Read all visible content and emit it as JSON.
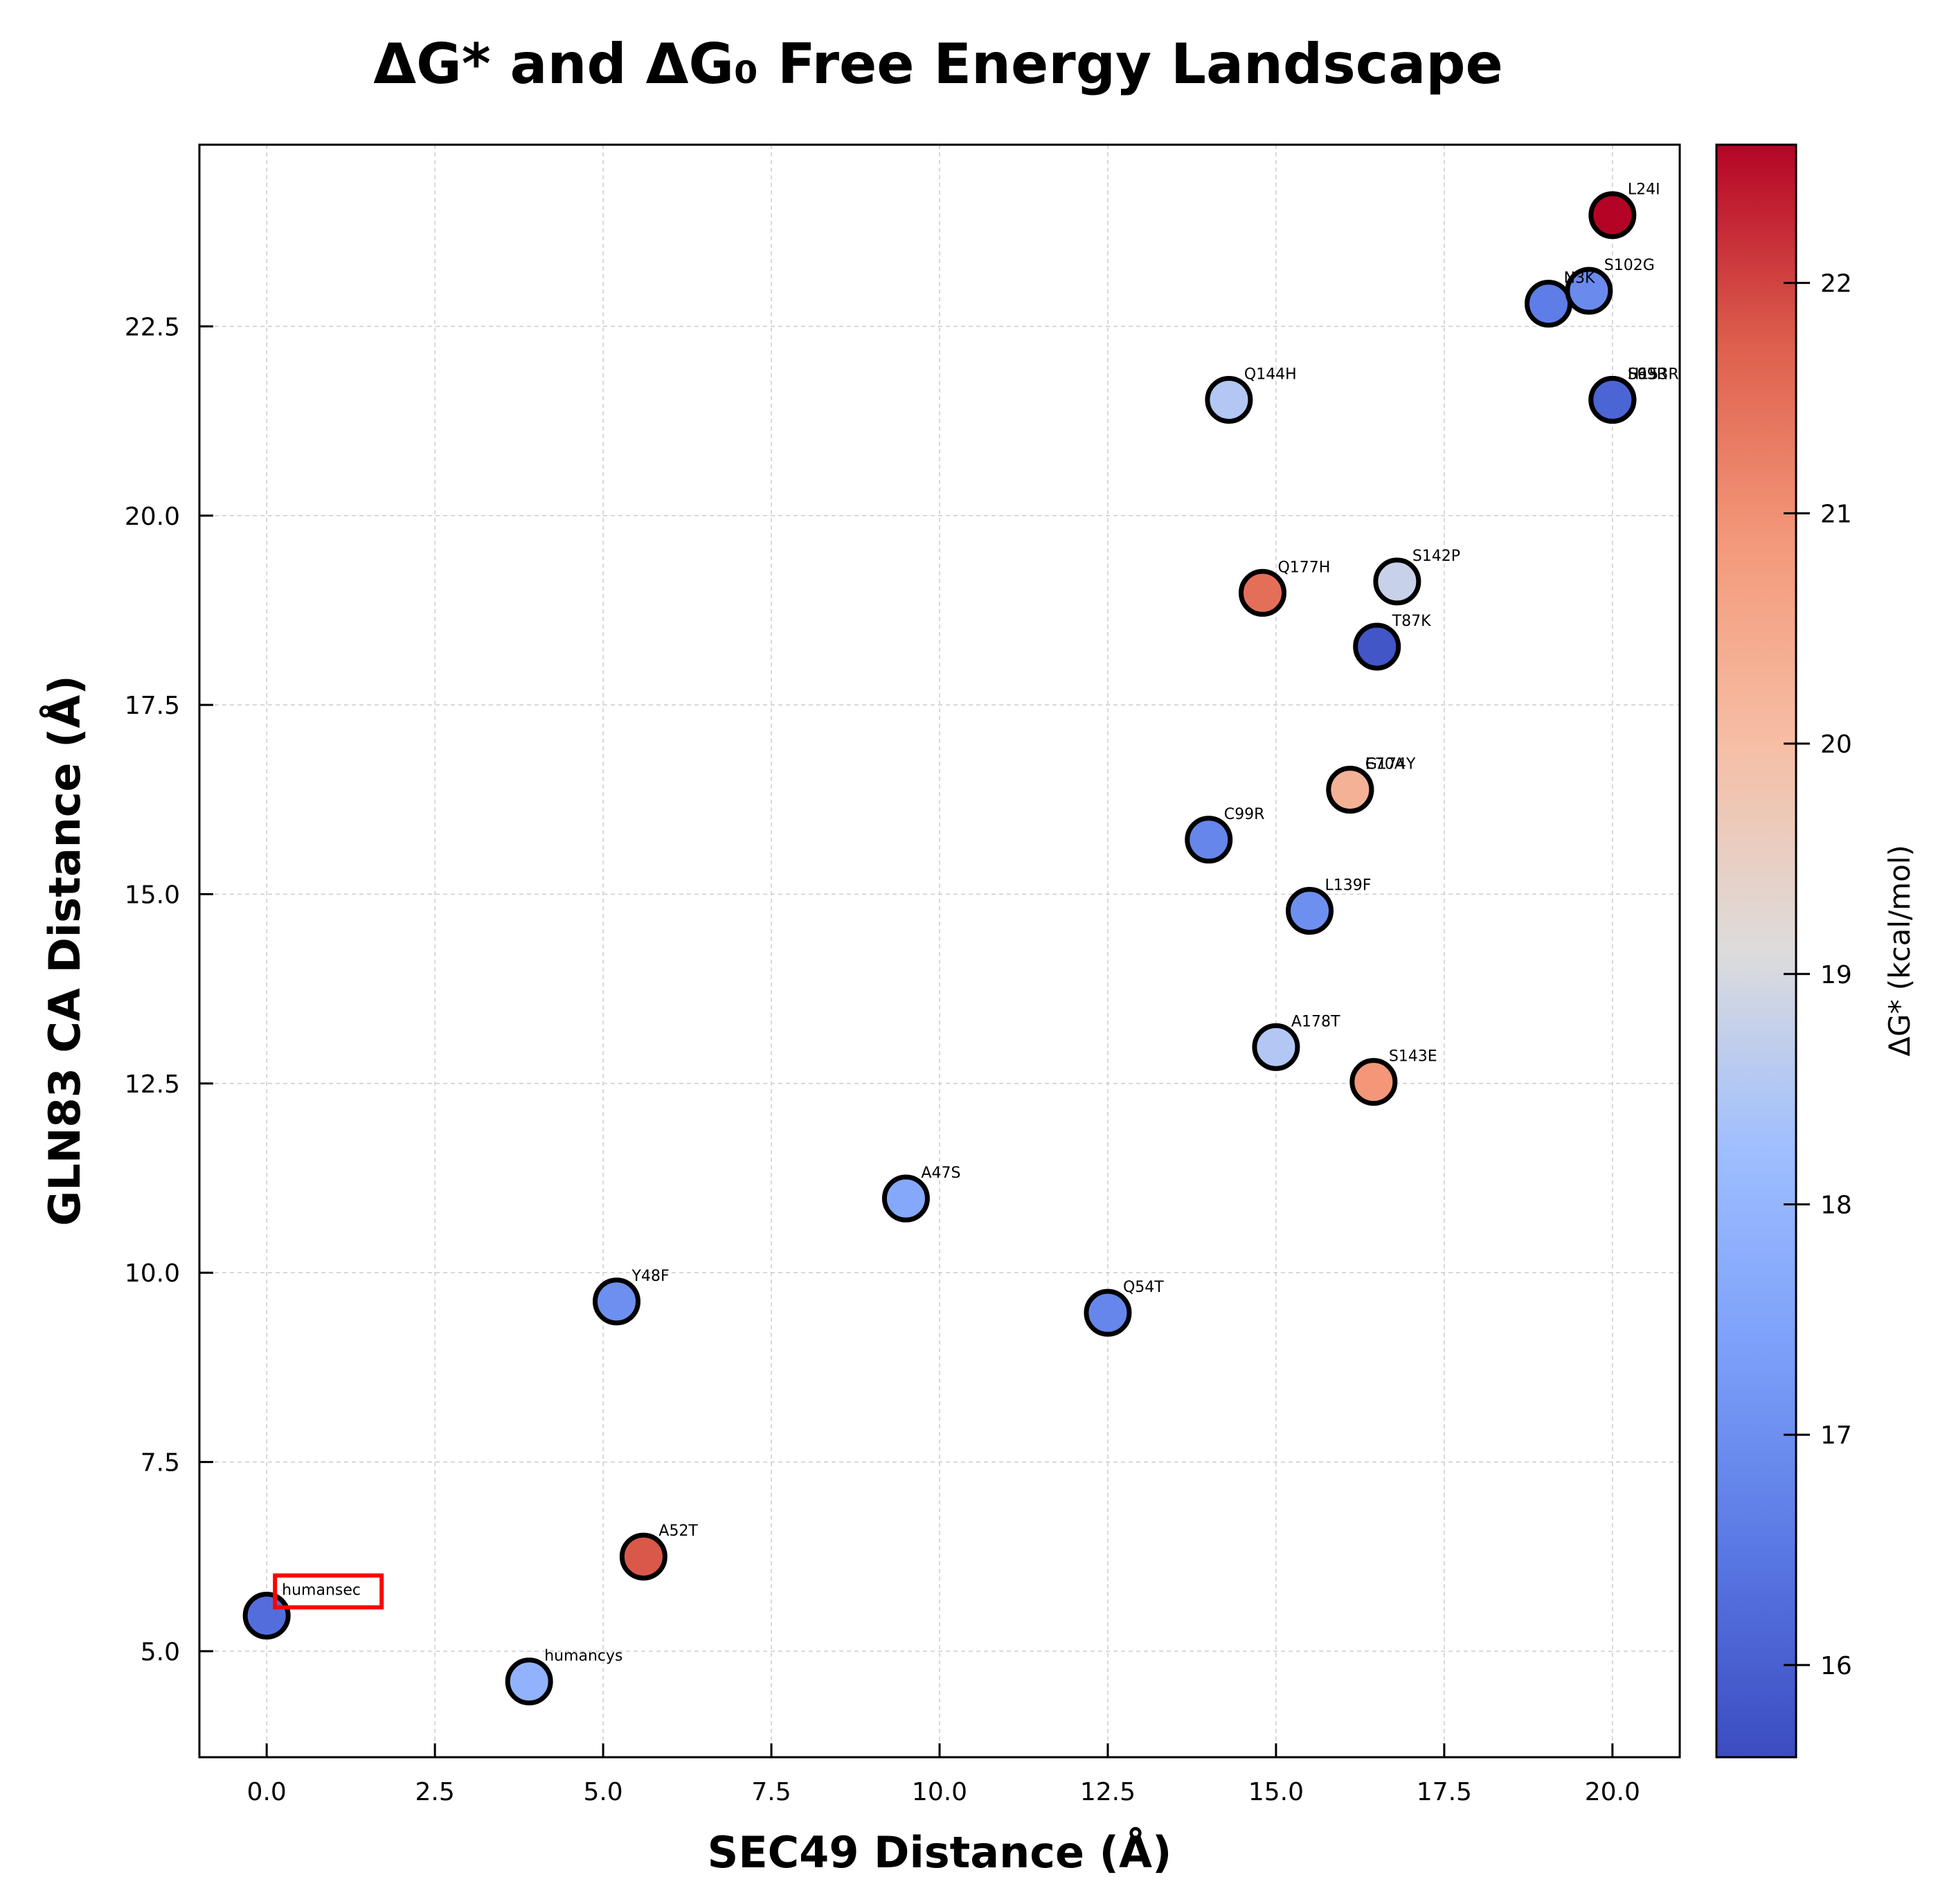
{
  "chart_data": {
    "type": "scatter",
    "title": "ΔG* and ΔG₀ Free Energy Landscape",
    "xlabel": "SEC49 Distance (Å)",
    "ylabel": "GLN83 CA Distance (Å)",
    "xlim": [
      -1.0,
      21.0
    ],
    "ylim": [
      3.6,
      24.9
    ],
    "xticks": [
      "0.0",
      "2.5",
      "5.0",
      "7.5",
      "10.0",
      "12.5",
      "15.0",
      "17.5",
      "20.0"
    ],
    "yticks": [
      "5.0",
      "7.5",
      "10.0",
      "12.5",
      "15.0",
      "17.5",
      "20.0",
      "22.5"
    ],
    "grid": true,
    "colorbar": {
      "label": "ΔG* (kcal/mol)",
      "range": [
        15.6,
        22.6
      ],
      "ticks": [
        "16",
        "17",
        "18",
        "19",
        "20",
        "21",
        "22"
      ],
      "colormap": "coolwarm"
    },
    "highlight": {
      "label": "humansec",
      "color": "#ff0000"
    },
    "points": [
      {
        "label": "humansec",
        "x": 0.0,
        "y": 5.47,
        "dg": 16.3
      },
      {
        "label": "humancys",
        "x": 3.9,
        "y": 4.6,
        "dg": 17.9
      },
      {
        "label": "A52T",
        "x": 5.6,
        "y": 6.25,
        "dg": 21.8
      },
      {
        "label": "Y48F",
        "x": 5.2,
        "y": 9.62,
        "dg": 17.0
      },
      {
        "label": "A47S",
        "x": 9.5,
        "y": 10.98,
        "dg": 17.6
      },
      {
        "label": "Q54T",
        "x": 12.5,
        "y": 9.47,
        "dg": 16.8
      },
      {
        "label": "A178T",
        "x": 15.0,
        "y": 12.98,
        "dg": 18.5
      },
      {
        "label": "S143E",
        "x": 16.45,
        "y": 12.52,
        "dg": 20.9
      },
      {
        "label": "L139F",
        "x": 15.5,
        "y": 14.78,
        "dg": 17.0
      },
      {
        "label": "C99R",
        "x": 14.0,
        "y": 15.72,
        "dg": 16.8
      },
      {
        "label": "E70A",
        "x": 16.1,
        "y": 16.38,
        "dg": 20.3
      },
      {
        "label": "G174Y",
        "x": 16.1,
        "y": 16.38,
        "dg": 20.3
      },
      {
        "label": "T87K",
        "x": 16.5,
        "y": 18.27,
        "dg": 15.8
      },
      {
        "label": "Q177H",
        "x": 14.8,
        "y": 18.98,
        "dg": 21.5
      },
      {
        "label": "S142P",
        "x": 16.8,
        "y": 19.13,
        "dg": 18.8
      },
      {
        "label": "Q144H",
        "x": 14.3,
        "y": 21.53,
        "dg": 18.5
      },
      {
        "label": "N3K",
        "x": 19.05,
        "y": 22.8,
        "dg": 16.6
      },
      {
        "label": "S102G",
        "x": 19.65,
        "y": 22.97,
        "dg": 16.9
      },
      {
        "label": "L24I",
        "x": 20.0,
        "y": 23.97,
        "dg": 22.6
      },
      {
        "label": "S93R",
        "x": 20.0,
        "y": 21.53,
        "dg": 16.1
      },
      {
        "label": "S69R",
        "x": 20.0,
        "y": 21.53,
        "dg": 16.1
      },
      {
        "label": "H153R",
        "x": 20.0,
        "y": 21.53,
        "dg": 16.1
      }
    ]
  }
}
